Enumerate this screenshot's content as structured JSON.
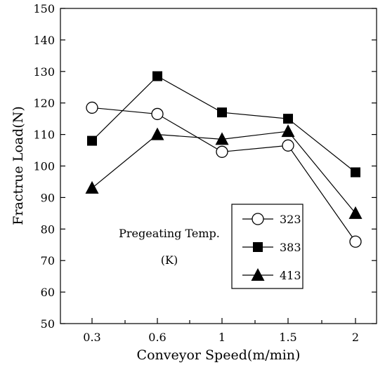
{
  "chart_data": {
    "type": "line",
    "title": "",
    "xlabel": "Conveyor Speed(m/min)",
    "ylabel": "Fractrue Load(N)",
    "categories": [
      "0.3",
      "0.6",
      "1",
      "1.5",
      "2"
    ],
    "ylim": [
      50,
      150
    ],
    "yticks": [
      "50",
      "60",
      "70",
      "80",
      "90",
      "100",
      "110",
      "120",
      "130",
      "140",
      "150"
    ],
    "grid": false,
    "legend_position": "bottom-right",
    "annotation": {
      "line1": "Pregeating Temp.",
      "line2": "(K)"
    },
    "series": [
      {
        "name": "323",
        "marker": "circle-open",
        "values": [
          118.5,
          116.5,
          104.5,
          106.5,
          76
        ]
      },
      {
        "name": "383",
        "marker": "square-filled",
        "values": [
          108,
          128.5,
          117,
          115,
          98
        ]
      },
      {
        "name": "413",
        "marker": "triangle-filled",
        "values": [
          93,
          110,
          108.5,
          111,
          85
        ]
      }
    ],
    "colors": {
      "line": "#000000",
      "marker_fill": "#000000",
      "open_fill": "#ffffff"
    }
  }
}
